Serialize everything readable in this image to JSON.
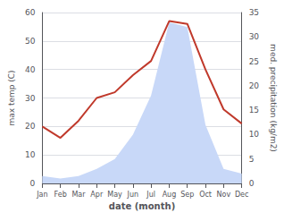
{
  "chart_data": {
    "type": "line",
    "xlabel": "date (month)",
    "ylabel": "max temp (C)",
    "y2label": "med. precipitation (kg/m2)",
    "categories": [
      "Jan",
      "Feb",
      "Mar",
      "Apr",
      "May",
      "Jun",
      "Jul",
      "Aug",
      "Sep",
      "Oct",
      "Nov",
      "Dec"
    ],
    "series": [
      {
        "type": "area",
        "axis": "y2",
        "color": "#c8d8f8",
        "values": [
          1.5,
          1.0,
          1.5,
          3.0,
          5.0,
          10.0,
          18.0,
          33.0,
          32.0,
          12.0,
          3.0,
          2.0
        ]
      },
      {
        "type": "line",
        "color": "#c0392b",
        "values": [
          20,
          16,
          22,
          30,
          32,
          38,
          43,
          57,
          56,
          40,
          26,
          21
        ]
      }
    ],
    "ylim": [
      0,
      60
    ],
    "yticks": [
      0,
      10,
      20,
      30,
      40,
      50,
      60
    ],
    "y2lim": [
      0,
      35
    ],
    "y2ticks": [
      0,
      5,
      10,
      15,
      20,
      25,
      30,
      35
    ],
    "grid": true
  }
}
